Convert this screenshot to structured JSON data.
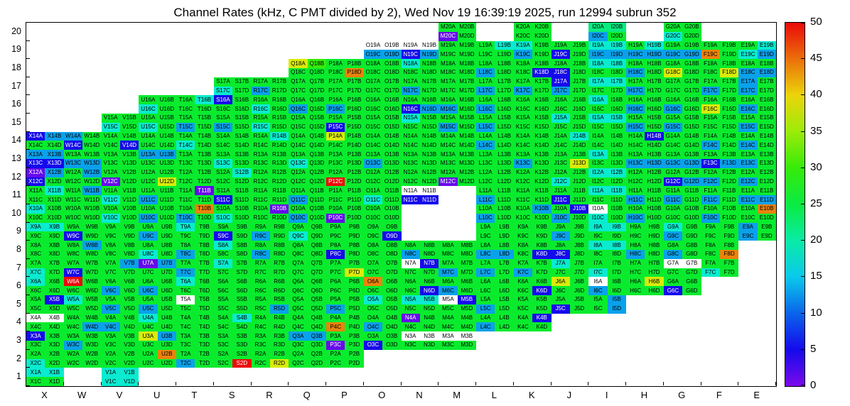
{
  "title": "Channel Rates (kHz, C PMT divided by 2), Wed Nov 19 16:39:19 2025, run 12994 subrun 352",
  "chart_data": {
    "type": "heatmap",
    "title": "Channel Rates (kHz, C PMT divided by 2), Wed Nov 19 16:39:19 2025, run 12994 subrun 352",
    "units": "kHz",
    "x_axis_labels": [
      "X",
      "W",
      "V",
      "U",
      "T",
      "S",
      "R",
      "Q",
      "P",
      "O",
      "N",
      "M",
      "L",
      "K",
      "J",
      "I",
      "H",
      "G",
      "F",
      "E"
    ],
    "y_axis_labels": [
      "20",
      "19",
      "18",
      "17",
      "16",
      "15",
      "14",
      "13",
      "12",
      "11",
      "10",
      "9",
      "8",
      "7",
      "6",
      "5",
      "4",
      "3",
      "2",
      "1"
    ],
    "channel_order": [
      "A",
      "B",
      "C",
      "D"
    ],
    "colorbar": {
      "min": 0,
      "max": 50,
      "ticks": [
        0,
        5,
        10,
        15,
        20,
        25,
        30,
        35,
        40,
        45,
        50
      ]
    },
    "palette_values": {
      "w": null,
      "p": 1,
      "b": 5,
      "c": 13,
      "t": 18,
      "e": 22,
      "g": 26,
      "l": 30,
      "Y": 38,
      "O": 44,
      "R": 50
    },
    "cells": {
      "20": {
        "M": "ggpg",
        "K": "gggg",
        "I": "eecg",
        "G": "ggtg"
      },
      "19": {
        "O": "wwcc",
        "N": "wwbc",
        "M": "gggg",
        "L": "gtgg",
        "K": "tgcg",
        "J": "ggbg",
        "I": "ttcc",
        "H": "gtcc",
        "G": "ggcc",
        "F": "ggOg",
        "E": "gttc"
      },
      "18": {
        "Q": "Ylgg",
        "P": "gggO",
        "O": "gggg",
        "N": "tggg",
        "M": "gggg",
        "L": "ggcg",
        "K": "gggb",
        "J": "ggbg",
        "I": "ttgg",
        "H": "ggcg",
        "G": "ggYg",
        "F": "gggY",
        "E": "ggcc"
      },
      "17": {
        "S": "ggtg",
        "R": "ggcg",
        "Q": "gggg",
        "P": "gggg",
        "O": "gggg",
        "N": "ggcg",
        "M": "gggg",
        "L": "ggcg",
        "K": "ggcg",
        "J": "bgcg",
        "I": "ttgg",
        "H": "ggcg",
        "G": "gggg",
        "F": "ggcg",
        "E": "cgcg"
      },
      "16": {
        "U": "ggtg",
        "T": "gtgg",
        "S": "bggg",
        "R": "ggtg",
        "Q": "ggcg",
        "P": "ggcg",
        "O": "gggg",
        "N": "ggbc",
        "M": "ggcg",
        "L": "ggcg",
        "K": "gggg",
        "J": "gggg",
        "I": "tggg",
        "H": "ggcg",
        "G": "ggcg",
        "F": "ggYg",
        "E": "ggcg"
      },
      "15": {
        "V": "ggtg",
        "U": "ggtg",
        "T": "ggcg",
        "S": "ggcg",
        "R": "ggtg",
        "Q": "gggg",
        "P": "ggbg",
        "O": "gggg",
        "N": "tggg",
        "M": "ggcg",
        "L": "ggcg",
        "K": "gggg",
        "J": "tggg",
        "I": "ttgg",
        "H": "ggcg",
        "G": "ggcg",
        "F": "gggg",
        "E": "ggcg"
      },
      "14": {
        "X": "bcgg",
        "W": "cgbg",
        "V": "gggb",
        "U": "gggg",
        "T": "ggtg",
        "S": "gggg",
        "R": "gtgg",
        "Q": "gggg",
        "P": "Yggg",
        "O": "gggg",
        "N": "gggg",
        "M": "gggg",
        "L": "ggcg",
        "K": "gggg",
        "J": "gtgg",
        "I": "gggg",
        "H": "gbgg",
        "G": "gggg",
        "F": "ggcg",
        "E": "ggcg"
      },
      "13": {
        "X": "ccbb",
        "W": "ggcc",
        "V": "gggg",
        "U": "ccgg",
        "T": "gggg",
        "S": "ggtg",
        "R": "gggg",
        "Q": "ggtg",
        "P": "gggg",
        "O": "ggcg",
        "N": "gggg",
        "M": "gggg",
        "L": "gggg",
        "K": "ggcg",
        "J": "gggY",
        "I": "tggg",
        "H": "ggcc",
        "G": "ggcc",
        "F": "ggbc",
        "E": "ggcg"
      },
      "12": {
        "X": "pcbg",
        "W": "gcgg",
        "V": "ggpg",
        "U": "gggY",
        "T": "gggg",
        "S": "gtgg",
        "R": "gggg",
        "Q": "gggg",
        "P": "ggRg",
        "O": "gggg",
        "N": "gggg",
        "M": "ggpg",
        "L": "gggg",
        "K": "gggg",
        "J": "ggtg",
        "I": "ttgg",
        "H": "gggg",
        "G": "ggbc",
        "F": "ggcg",
        "E": "ggcg"
      },
      "11": {
        "X": "gtgg",
        "W": "gcgg",
        "V": "ggtg",
        "U": "ggcg",
        "T": "gpgg",
        "S": "ggbg",
        "R": "gggg",
        "Q": "ggcg",
        "P": "gggg",
        "O": "ggtg",
        "N": "wwbb",
        "L": "ggcg",
        "K": "gggg",
        "J": "ggbg",
        "I": "ttgg",
        "H": "ggcg",
        "G": "ggcg",
        "F": "ggcg",
        "E": "ggcc"
      },
      "10": {
        "X": "tggg",
        "W": "gggg",
        "V": "ggtg",
        "U": "ggcg",
        "T": "gOcg",
        "S": "ggtg",
        "R": "gpgg",
        "Q": "ggcg",
        "P": "ggpg",
        "O": "gggg",
        "L": "ggcg",
        "K": "gcgg",
        "J": "gbcg",
        "I": "wgtg",
        "H": "ggcg",
        "G": "gggg",
        "F": "ggcg",
        "E": "gOgg"
      },
      "9": {
        "X": "ttgg",
        "W": "ggbg",
        "V": "gggg",
        "U": "ggcg",
        "T": "tggg",
        "S": "ggbg",
        "R": "ggcg",
        "Q": "ggtg",
        "P": "gggg",
        "O": "gggb",
        "L": "gggg",
        "K": "gggg",
        "J": "ggcg",
        "I": "ttgg",
        "H": "gggg",
        "G": "tgcg",
        "F": "gggg",
        "E": "cgcg"
      },
      "8": {
        "X": "gggg",
        "W": "gcgg",
        "V": "gggg",
        "U": "ggtg",
        "T": "ggcg",
        "S": "tggg",
        "R": "ggcg",
        "Q": "gggg",
        "P": "ggbg",
        "O": "gggg",
        "N": "ggcg",
        "M": "gggg",
        "L": "ggcc",
        "K": "gggb",
        "J": "ggbg",
        "I": "ttgg",
        "H": "ggcg",
        "G": "ggcg",
        "F": "gggO"
      },
      "7": {
        "X": "ggtg",
        "W": "ggbg",
        "V": "gcgg",
        "U": "pcgg",
        "T": "ggcg",
        "S": "tggg",
        "R": "gggg",
        "Q": "gggg",
        "P": "gggY",
        "O": "gggg",
        "N": "wbgg",
        "M": "ggcg",
        "L": "ggcg",
        "K": "ggcg",
        "J": "tggg",
        "I": "ggtg",
        "H": "gggg",
        "G": "wwgg",
        "F": "ggtg"
      },
      "6": {
        "X": "tggg",
        "W": "Rggg",
        "V": "ggcg",
        "U": "ggcg",
        "T": "tggg",
        "S": "gggg",
        "R": "gggg",
        "Q": "gggg",
        "P": "gggg",
        "O": "Oggg",
        "N": "gggb",
        "M": "ggcg",
        "L": "gggg",
        "K": "gggb",
        "J": "Yggg",
        "I": "wgcg",
        "H": "gYgg",
        "G": "ggbg"
      },
      "5": {
        "X": "gbgg",
        "W": "tggg",
        "V": "ggcg",
        "U": "ggcg",
        "T": "wggg",
        "S": "gggg",
        "R": "gggc",
        "Q": "gggg",
        "P": "ggcg",
        "O": "tggg",
        "N": "ttgg",
        "M": "wbgg",
        "L": "ggcg",
        "K": "gggg",
        "J": "ggbg",
        "I": "gcgc"
      },
      "4": {
        "X": "wwgg",
        "W": "gggc",
        "V": "ggcg",
        "U": "tggg",
        "T": "gggg",
        "S": "gtgg",
        "R": "gggg",
        "Q": "gggg",
        "P": "ggOg",
        "O": "ggcg",
        "N": "pggg",
        "M": "gggg",
        "L": "ggcg",
        "K": "gbgg"
      },
      "3": {
        "X": "bggg",
        "W": "ggcg",
        "V": "gggg",
        "U": "Ycgg",
        "T": "gggg",
        "S": "gggg",
        "R": "gggg",
        "Q": "ccgg",
        "P": "ggpg",
        "O": "ggbg",
        "N": "wwgg",
        "M": "wwgg"
      },
      "2": {
        "X": "ggtg",
        "W": "gggg",
        "V": "gggg",
        "U": "gOgg",
        "T": "ggcg",
        "S": "gggR",
        "R": "gggY",
        "Q": "gggg",
        "P": "gggg"
      },
      "1": {
        "X": "ttgg",
        "V": "tttt"
      }
    }
  }
}
